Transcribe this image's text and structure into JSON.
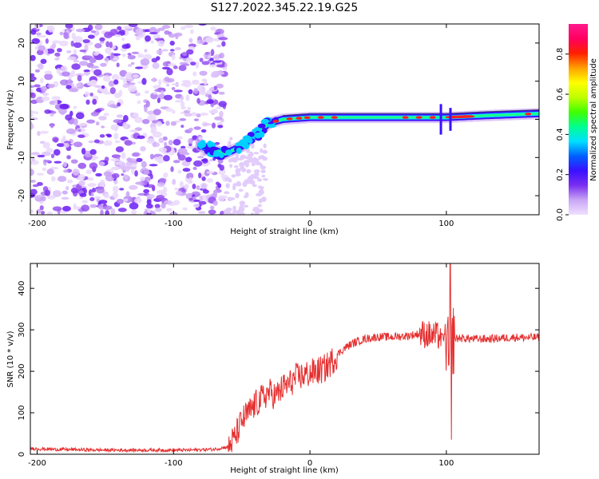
{
  "title": "S127.2022.345.22.19.G25",
  "chart_data": [
    {
      "type": "heatmap",
      "xlabel": "Height of straight line (km)",
      "ylabel": "Frequency (Hz)",
      "xlim": [
        -205,
        168
      ],
      "ylim": [
        -25,
        25
      ],
      "xticks": [
        -200,
        -100,
        0,
        100
      ],
      "yticks": [
        -20,
        -10,
        0,
        10,
        20
      ],
      "colorbar": {
        "label": "Normalized spectral amplitude",
        "ticks": [
          "0.0",
          "0.2",
          "0.4",
          "0.6",
          "0.8"
        ],
        "range": [
          0,
          0.95
        ],
        "colors": [
          "#f0e0ff",
          "#c9a6f5",
          "#7a2ff0",
          "#3a10ff",
          "#0060ff",
          "#00e0ff",
          "#00ff90",
          "#40ff00",
          "#c0ff00",
          "#ffff00",
          "#ffa000",
          "#ff2000",
          "#ff0060",
          "#ff1a8c"
        ]
      },
      "noise_region_x": [
        -205,
        -62
      ],
      "ridge": [
        [
          -80,
          -7
        ],
        [
          -62,
          -9
        ],
        [
          -50,
          -7
        ],
        [
          -40,
          -4
        ],
        [
          -30,
          -1
        ],
        [
          -20,
          0
        ],
        [
          0,
          0.5
        ],
        [
          40,
          0.5
        ],
        [
          80,
          0.5
        ],
        [
          100,
          0.5
        ],
        [
          130,
          1
        ],
        [
          168,
          1.5
        ]
      ]
    },
    {
      "type": "line",
      "xlabel": "Height of straight line (km)",
      "ylabel": "SNR (10 * v/v)",
      "xlim": [
        -205,
        168
      ],
      "ylim": [
        0,
        460
      ],
      "xticks": [
        -200,
        -100,
        0,
        100
      ],
      "yticks": [
        0,
        100,
        200,
        300,
        400
      ],
      "series": [
        {
          "color": "#e53030",
          "x": [
            -205,
            -190,
            -170,
            -150,
            -130,
            -110,
            -90,
            -70,
            -60,
            -55,
            -50,
            -45,
            -40,
            -35,
            -30,
            -25,
            -20,
            -15,
            -10,
            -5,
            0,
            5,
            10,
            15,
            20,
            25,
            30,
            35,
            40,
            50,
            60,
            70,
            80,
            85,
            90,
            95,
            100,
            102,
            104,
            110,
            120,
            130,
            140,
            150,
            160,
            168
          ],
          "y": [
            14,
            12,
            11,
            10,
            10,
            10,
            10,
            12,
            18,
            40,
            80,
            100,
            120,
            135,
            150,
            140,
            160,
            170,
            185,
            190,
            195,
            200,
            205,
            220,
            240,
            255,
            265,
            272,
            278,
            283,
            283,
            285,
            290,
            290,
            285,
            285,
            280,
            220,
            278,
            280,
            278,
            278,
            280,
            282,
            281,
            282
          ]
        }
      ]
    }
  ]
}
